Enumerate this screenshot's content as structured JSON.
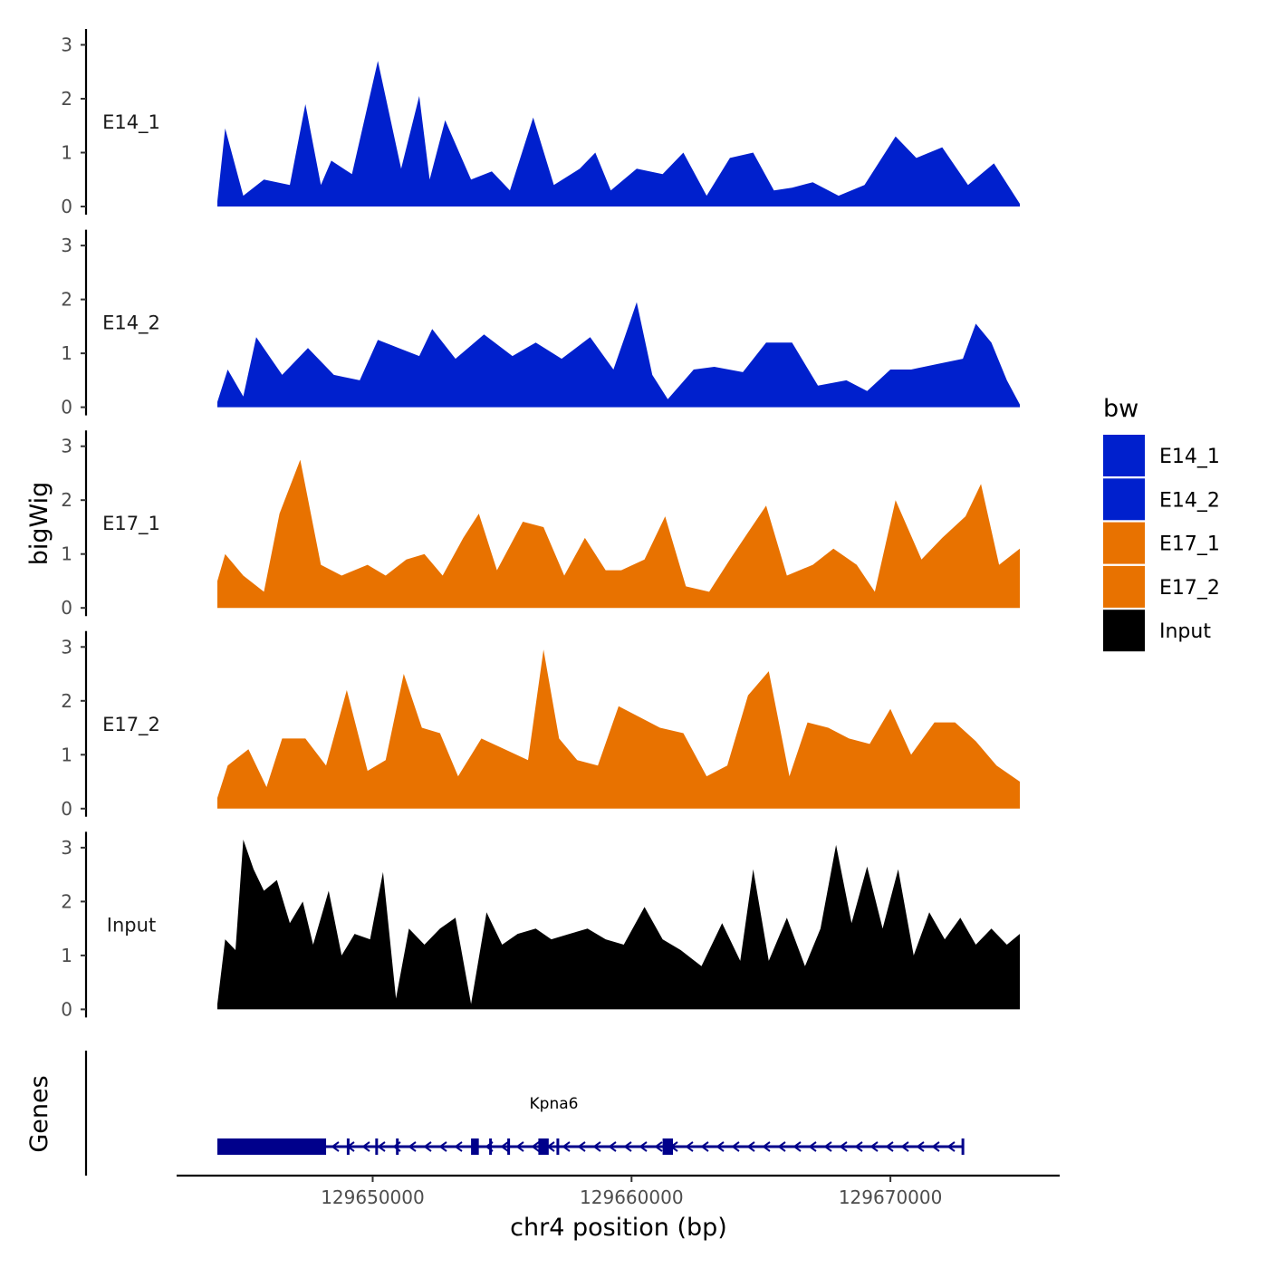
{
  "chart_data": {
    "type": "area",
    "ylabel": "bigWig",
    "xlabel": "chr4 position (bp)",
    "ylim": [
      0,
      3.2
    ],
    "y_ticks": [
      0,
      1,
      2,
      3
    ],
    "x_range": [
      129644000,
      129675000
    ],
    "x_ticks": [
      129650000,
      129660000,
      129670000
    ],
    "x_tick_labels": [
      "129650000",
      "129660000",
      "129670000"
    ],
    "genes_label": "Genes",
    "legend": {
      "title": "bw",
      "items": [
        {
          "name": "E14_1",
          "color": "#0020CD"
        },
        {
          "name": "E14_2",
          "color": "#0020CD"
        },
        {
          "name": "E17_1",
          "color": "#E87200"
        },
        {
          "name": "E17_2",
          "color": "#E87200"
        },
        {
          "name": "Input",
          "color": "#000000"
        }
      ]
    },
    "tracks": [
      {
        "name": "E14_1",
        "color": "#0020CD",
        "x": [
          129644000,
          129644300,
          129645000,
          129645800,
          129646800,
          129647400,
          129648000,
          129648400,
          129649200,
          129650200,
          129651100,
          129651800,
          129652200,
          129652800,
          129653800,
          129654600,
          129655300,
          129656200,
          129657000,
          129658000,
          129658600,
          129659200,
          129660200,
          129661200,
          129662000,
          129662900,
          129663800,
          129664700,
          129665500,
          129666200,
          129667000,
          129668000,
          129669000,
          129670200,
          129671000,
          129672000,
          129673000,
          129674000,
          129675000
        ],
        "values": [
          0.1,
          1.45,
          0.2,
          0.5,
          0.4,
          1.9,
          0.4,
          0.85,
          0.6,
          2.7,
          0.7,
          2.05,
          0.5,
          1.6,
          0.5,
          0.65,
          0.3,
          1.65,
          0.4,
          0.7,
          1.0,
          0.3,
          0.7,
          0.6,
          1.0,
          0.2,
          0.9,
          1.0,
          0.3,
          0.35,
          0.45,
          0.2,
          0.4,
          1.3,
          0.9,
          1.1,
          0.4,
          0.8,
          0.05
        ]
      },
      {
        "name": "E14_2",
        "color": "#0020CD",
        "x": [
          129644000,
          129644400,
          129645000,
          129645500,
          129646500,
          129647500,
          129648500,
          129649500,
          129650200,
          129651000,
          129651800,
          129652300,
          129653200,
          129654300,
          129655400,
          129656300,
          129657300,
          129658400,
          129659300,
          129659700,
          129660200,
          129660800,
          129661400,
          129662400,
          129663200,
          129664300,
          129665200,
          129666200,
          129667200,
          129668300,
          129669100,
          129670000,
          129670800,
          129671800,
          129672800,
          129673300,
          129673900,
          129674500,
          129675000
        ],
        "values": [
          0.1,
          0.7,
          0.2,
          1.3,
          0.6,
          1.1,
          0.6,
          0.5,
          1.25,
          1.1,
          0.95,
          1.45,
          0.9,
          1.35,
          0.95,
          1.2,
          0.9,
          1.3,
          0.7,
          1.25,
          1.95,
          0.6,
          0.15,
          0.7,
          0.75,
          0.65,
          1.2,
          1.2,
          0.4,
          0.5,
          0.3,
          0.7,
          0.7,
          0.8,
          0.9,
          1.55,
          1.2,
          0.5,
          0.05
        ]
      },
      {
        "name": "E17_1",
        "color": "#E87200",
        "x": [
          129644000,
          129644300,
          129645000,
          129645800,
          129646400,
          129647200,
          129648000,
          129648800,
          129649800,
          129650500,
          129651300,
          129652000,
          129652700,
          129653500,
          129654100,
          129654800,
          129655800,
          129656600,
          129657400,
          129658200,
          129659000,
          129659600,
          129660500,
          129661300,
          129662100,
          129663000,
          129663800,
          129664500,
          129665200,
          129666000,
          129667000,
          129667800,
          129668700,
          129669400,
          129670200,
          129671200,
          129672000,
          129672900,
          129673500,
          129674200,
          129675000
        ],
        "values": [
          0.5,
          1.0,
          0.6,
          0.3,
          1.75,
          2.75,
          0.8,
          0.6,
          0.8,
          0.6,
          0.9,
          1.0,
          0.6,
          1.3,
          1.75,
          0.7,
          1.6,
          1.5,
          0.6,
          1.3,
          0.7,
          0.7,
          0.9,
          1.7,
          0.4,
          0.3,
          0.9,
          1.4,
          1.9,
          0.6,
          0.8,
          1.1,
          0.8,
          0.3,
          2.0,
          0.9,
          1.3,
          1.7,
          2.3,
          0.8,
          1.1
        ]
      },
      {
        "name": "E17_2",
        "color": "#E87200",
        "x": [
          129644000,
          129644400,
          129645200,
          129645900,
          129646500,
          129647400,
          129648200,
          129649000,
          129649800,
          129650500,
          129651200,
          129651900,
          129652600,
          129653300,
          129654200,
          129655100,
          129656000,
          129656600,
          129657200,
          129657900,
          129658700,
          129659500,
          129660300,
          129661100,
          129662000,
          129662900,
          129663700,
          129664500,
          129665300,
          129666100,
          129666800,
          129667600,
          129668400,
          129669200,
          129670000,
          129670800,
          129671700,
          129672500,
          129673300,
          129674100,
          129675000
        ],
        "values": [
          0.2,
          0.8,
          1.1,
          0.4,
          1.3,
          1.3,
          0.8,
          2.2,
          0.7,
          0.9,
          2.5,
          1.5,
          1.4,
          0.6,
          1.3,
          1.1,
          0.9,
          2.95,
          1.3,
          0.9,
          0.8,
          1.9,
          1.7,
          1.5,
          1.4,
          0.6,
          0.8,
          2.1,
          2.55,
          0.6,
          1.6,
          1.5,
          1.3,
          1.2,
          1.85,
          1.0,
          1.6,
          1.6,
          1.25,
          0.8,
          0.5
        ]
      },
      {
        "name": "Input",
        "color": "#000000",
        "x": [
          129644000,
          129644300,
          129644700,
          129645000,
          129645400,
          129645800,
          129646300,
          129646800,
          129647300,
          129647700,
          129648300,
          129648800,
          129649300,
          129649900,
          129650400,
          129650900,
          129651400,
          129652000,
          129652600,
          129653200,
          129653800,
          129654400,
          129655000,
          129655600,
          129656300,
          129656900,
          129657600,
          129658300,
          129659000,
          129659700,
          129660500,
          129661200,
          129661900,
          129662700,
          129663500,
          129664200,
          129664700,
          129665300,
          129666000,
          129666700,
          129667300,
          129667900,
          129668500,
          129669100,
          129669700,
          129670300,
          129670900,
          129671500,
          129672100,
          129672700,
          129673300,
          129673900,
          129674500,
          129675000
        ],
        "values": [
          0.1,
          1.3,
          1.1,
          3.15,
          2.6,
          2.2,
          2.4,
          1.6,
          2.0,
          1.2,
          2.2,
          1.0,
          1.4,
          1.3,
          2.55,
          0.2,
          1.5,
          1.2,
          1.5,
          1.7,
          0.1,
          1.8,
          1.2,
          1.4,
          1.5,
          1.3,
          1.4,
          1.5,
          1.3,
          1.2,
          1.9,
          1.3,
          1.1,
          0.8,
          1.6,
          0.9,
          2.6,
          0.9,
          1.7,
          0.8,
          1.5,
          3.05,
          1.6,
          2.65,
          1.5,
          2.6,
          1.0,
          1.8,
          1.3,
          1.7,
          1.2,
          1.5,
          1.2,
          1.4
        ]
      }
    ],
    "genes": [
      {
        "name": "Kpna6",
        "start": 129644000,
        "end": 129672800,
        "strand": "-",
        "exons": [
          [
            129644000,
            129648200
          ],
          [
            129649000,
            129649100
          ],
          [
            129650100,
            129650200
          ],
          [
            129650900,
            129651000
          ],
          [
            129653800,
            129654100
          ],
          [
            129654500,
            129654600
          ],
          [
            129655200,
            129655300
          ],
          [
            129656400,
            129656800
          ],
          [
            129657100,
            129657200
          ],
          [
            129661200,
            129661600
          ]
        ]
      }
    ]
  }
}
